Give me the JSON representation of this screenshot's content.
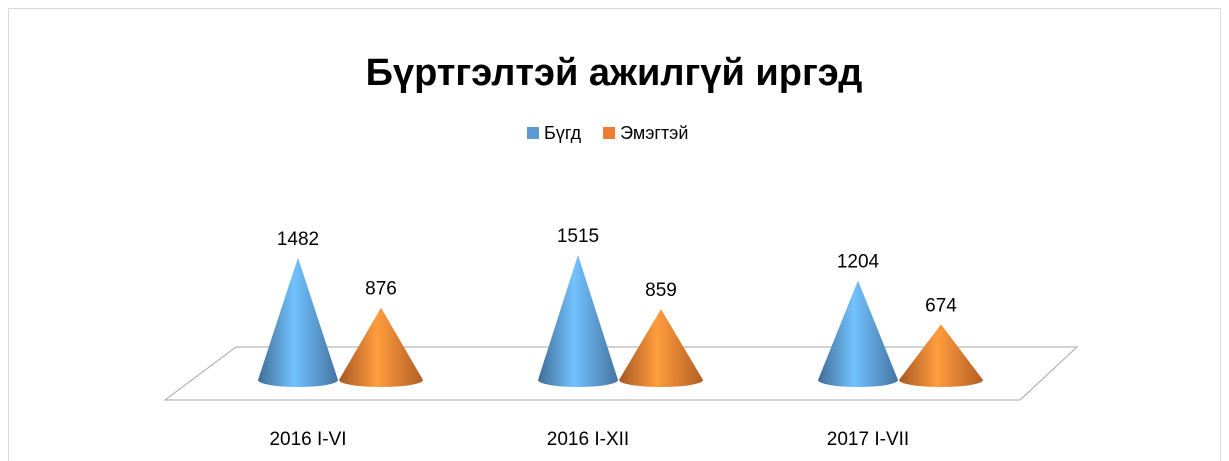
{
  "chart_data": {
    "type": "cone3d",
    "title": "Бүртгэлтэй ажилгүй иргэд",
    "categories": [
      "2016 I-VI",
      "2016 I-XII",
      "2017 I-VII"
    ],
    "series": [
      {
        "name": "Бүгд",
        "color": "#5b9bd5",
        "values": [
          1482,
          1515,
          1204
        ]
      },
      {
        "name": "Эмэгтэй",
        "color": "#ed7d31",
        "values": [
          876,
          859,
          674
        ]
      }
    ],
    "legend": "top"
  }
}
